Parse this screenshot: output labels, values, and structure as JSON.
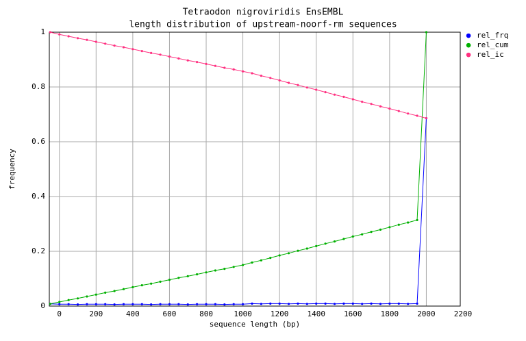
{
  "chart_data": {
    "type": "line",
    "title": "Tetraodon nigroviridis EnsEMBL",
    "subtitle": "length distribution of upstream-noorf-rm sequences",
    "x_label": "sequence length (bp)",
    "y_label": "frequency",
    "x": [
      -50,
      0,
      50,
      100,
      150,
      200,
      250,
      300,
      350,
      400,
      450,
      500,
      550,
      600,
      650,
      700,
      750,
      800,
      850,
      900,
      950,
      1000,
      1050,
      1100,
      1150,
      1200,
      1250,
      1300,
      1350,
      1400,
      1450,
      1500,
      1550,
      1600,
      1650,
      1700,
      1750,
      1800,
      1850,
      1900,
      1950,
      2000
    ],
    "series": [
      {
        "name": "rel_frq",
        "color": "#0000ff",
        "values": [
          0.008,
          0.007,
          0.007,
          0.006,
          0.007,
          0.007,
          0.007,
          0.006,
          0.007,
          0.007,
          0.007,
          0.006,
          0.007,
          0.007,
          0.007,
          0.006,
          0.007,
          0.007,
          0.007,
          0.006,
          0.007,
          0.007,
          0.009,
          0.008,
          0.009,
          0.009,
          0.008,
          0.009,
          0.008,
          0.009,
          0.009,
          0.008,
          0.009,
          0.009,
          0.008,
          0.009,
          0.008,
          0.009,
          0.009,
          0.008,
          0.009,
          0.686
        ]
      },
      {
        "name": "rel_cum",
        "color": "#00b000",
        "values": [
          0.008,
          0.015,
          0.022,
          0.028,
          0.035,
          0.042,
          0.049,
          0.055,
          0.062,
          0.069,
          0.076,
          0.082,
          0.089,
          0.096,
          0.103,
          0.109,
          0.116,
          0.123,
          0.13,
          0.136,
          0.143,
          0.15,
          0.159,
          0.167,
          0.176,
          0.185,
          0.193,
          0.202,
          0.21,
          0.219,
          0.228,
          0.236,
          0.245,
          0.254,
          0.262,
          0.271,
          0.279,
          0.288,
          0.297,
          0.305,
          0.314,
          1.0
        ]
      },
      {
        "name": "rel_ic",
        "color": "#ff3080",
        "values": [
          1.0,
          0.992,
          0.985,
          0.978,
          0.972,
          0.965,
          0.958,
          0.951,
          0.945,
          0.938,
          0.931,
          0.924,
          0.918,
          0.911,
          0.904,
          0.897,
          0.891,
          0.884,
          0.877,
          0.87,
          0.864,
          0.857,
          0.85,
          0.841,
          0.833,
          0.824,
          0.815,
          0.807,
          0.798,
          0.79,
          0.781,
          0.772,
          0.764,
          0.755,
          0.746,
          0.738,
          0.729,
          0.721,
          0.712,
          0.703,
          0.695,
          0.686
        ]
      }
    ],
    "xlim": [
      -55,
      2185
    ],
    "ylim": [
      0,
      1
    ],
    "xticks": [
      0,
      200,
      400,
      600,
      800,
      1000,
      1200,
      1400,
      1600,
      1800,
      2000,
      2200
    ],
    "yticks": [
      0,
      0.2,
      0.4,
      0.6,
      0.8,
      1
    ],
    "grid": true,
    "legend": "right"
  }
}
